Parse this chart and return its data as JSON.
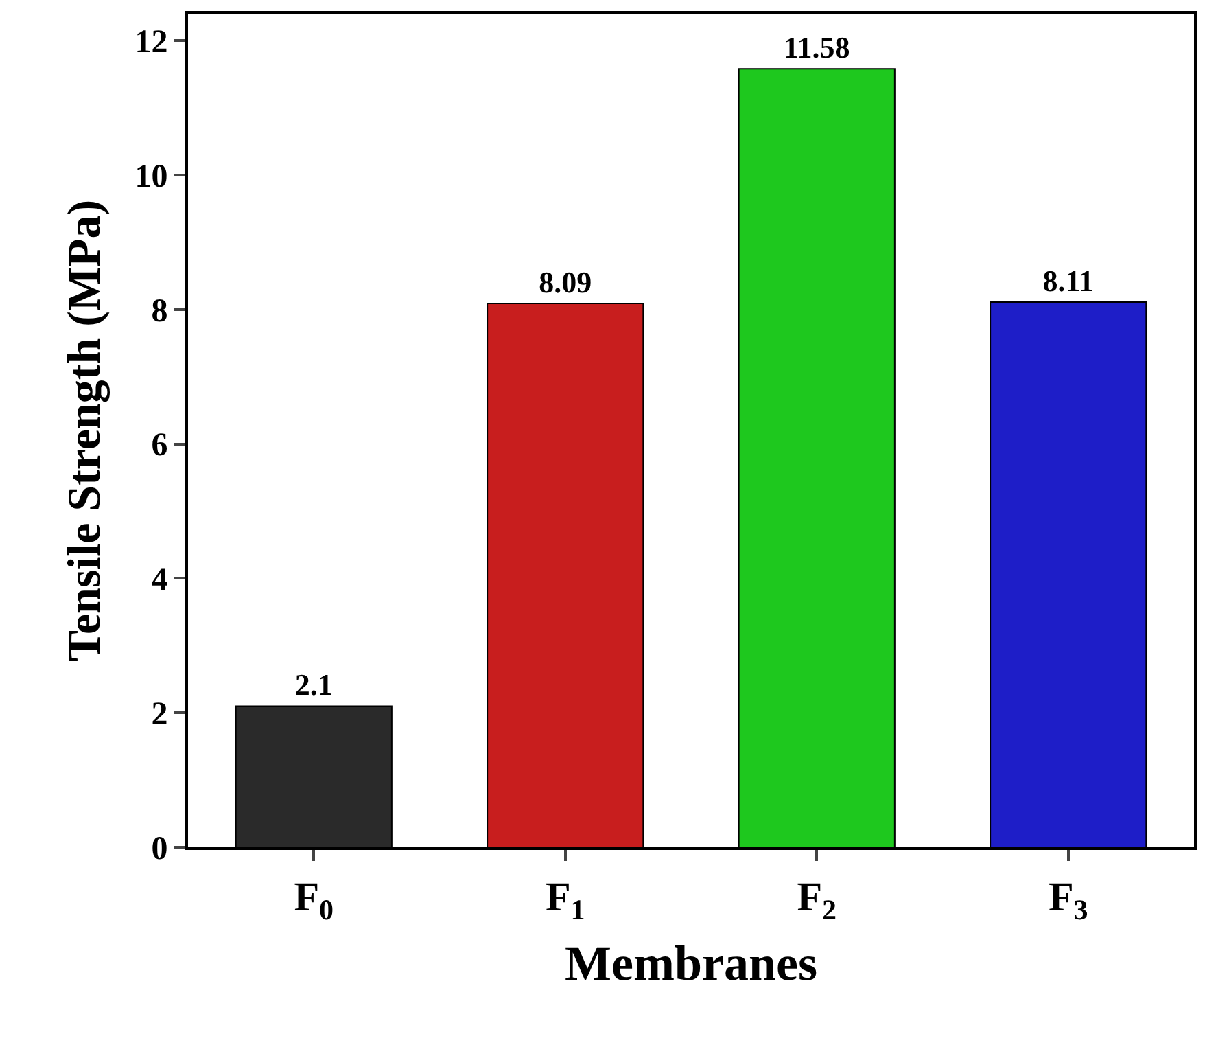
{
  "chart_data": {
    "type": "bar",
    "xlabel": "Membranes",
    "ylabel": "Tensile Strength (MPa)",
    "categories": [
      "F$_{0}$",
      "F$_{1}$",
      "F$_{2}$",
      "F$_{3}$"
    ],
    "values": [
      2.1,
      8.09,
      11.58,
      8.11
    ],
    "colors": [
      "#2a2a2a",
      "#c81e1e",
      "#1ec81e",
      "#1e1ec8"
    ],
    "ylim": [
      0,
      12.4
    ],
    "yticks": [
      0,
      2,
      4,
      6,
      8,
      10,
      12
    ],
    "data_labels": true
  }
}
